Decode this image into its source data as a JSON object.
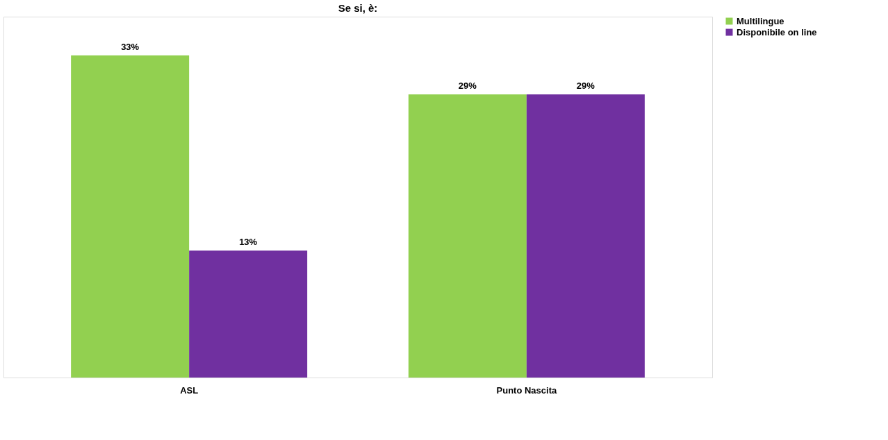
{
  "chart_data": {
    "type": "bar",
    "title": "Se si, è:",
    "categories": [
      "ASL",
      "Punto Nascita"
    ],
    "series": [
      {
        "name": "Multilingue",
        "color": "#92d050",
        "values": [
          33,
          29
        ],
        "value_labels": [
          "33%",
          "29%"
        ]
      },
      {
        "name": "Disponibile on line",
        "color": "#7030a0",
        "values": [
          13,
          29
        ],
        "value_labels": [
          "13%",
          "29%"
        ]
      }
    ],
    "grid": false,
    "legend": "right",
    "tick_labels": "x"
  }
}
